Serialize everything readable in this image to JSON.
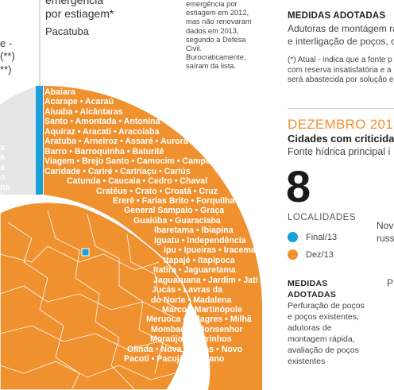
{
  "colors": {
    "orange": "#f0912f",
    "blue": "#1a9fd9",
    "gray_sector": "#e6e6e6",
    "state_fill": "#f0912f"
  },
  "header_left": {
    "line1": "emergência",
    "line2": "por estiagem*",
    "city": "Pacatuba",
    "fragments": [
      "e -",
      "(**)",
      "**)"
    ]
  },
  "side_note": "emergência por estiagem em 2012, mas não renovaram dados em 2013, segundo a Defesa Civil. Burocraticamente, saíram da lista.",
  "left_city_frags": [
    "a",
    "a",
    "a",
    "o",
    "na",
    "ho"
  ],
  "medidas_top": {
    "title": "MEDIDAS ADOTADAS",
    "line1": "Adutoras de montagem rá",
    "line2": "e interligação de poços, op"
  },
  "footnote": {
    "line1": "(*) Atual - indica que a fonte p",
    "line2": "com reserva insatisfatória e a",
    "line3": "será abastecida por solução e"
  },
  "dezembro": {
    "title": "DEZEMBRO 2013",
    "subtitle": "Cidades com criticidad",
    "fonte": "Fonte hídrica principal i",
    "count": "8",
    "localidades_label": "LOCALIDADES",
    "legend": [
      {
        "label": "Final/13",
        "color": "#1a9fd9"
      },
      {
        "label": "Dez/13",
        "color": "#f0912f"
      }
    ],
    "nov_fragment_1": "Nov",
    "nov_fragment_2": "russ",
    "medidas_title_1": "MEDIDAS",
    "medidas_title_2": "ADOTADAS",
    "medidas_body": [
      "Perfuração de poços",
      "e poços existentes,",
      "adutoras de",
      "montagem rápida,",
      "avaliação de poços",
      "existentes"
    ],
    "p_fragment": "P"
  },
  "city_lines": [
    "Abaiara",
    "Acarape • Acaraú",
    "Aiuaba • Alcântaras",
    "Santo • Amontada • Antonina",
    "Aquiraz • Aracati • Aracoiaba",
    "Aratuba • Arneiroz • Assaré • Aurora",
    "Barro • Barroquinha • Baturité",
    "Viagem • Brejo Santo • Camocim • Campos",
    "Caridade • Cariré • Caririaçu • Cariús",
    "Catunda • Caucaia • Cedro • Chaval",
    "Cratéus • Crato • Croatá • Cruz",
    "Ererê • Farias Brito • Forquilha",
    "General Sampaio • Graça",
    "Guaiúba • Guaraciaba",
    "Ibaretama • Ibiapina",
    "Iguatu • Independência",
    "Ipu • Ipueiras • Iracema",
    "Itapajé • Itapipoca",
    "Itatira • Jaguaretama",
    "Jaguaruana • Jardim • Jati",
    "Jucás • Lavras da",
    "do Norte • Madalena",
    "Marco • Martinópole",
    "Meruoca • Milagres • Milhã",
    "Mombaça • Monsenhor",
    "Moraújo • Morrinhos",
    "Olinda • Nova Russas • Novo",
    "Pacoti • Pacujá • Palhano"
  ]
}
